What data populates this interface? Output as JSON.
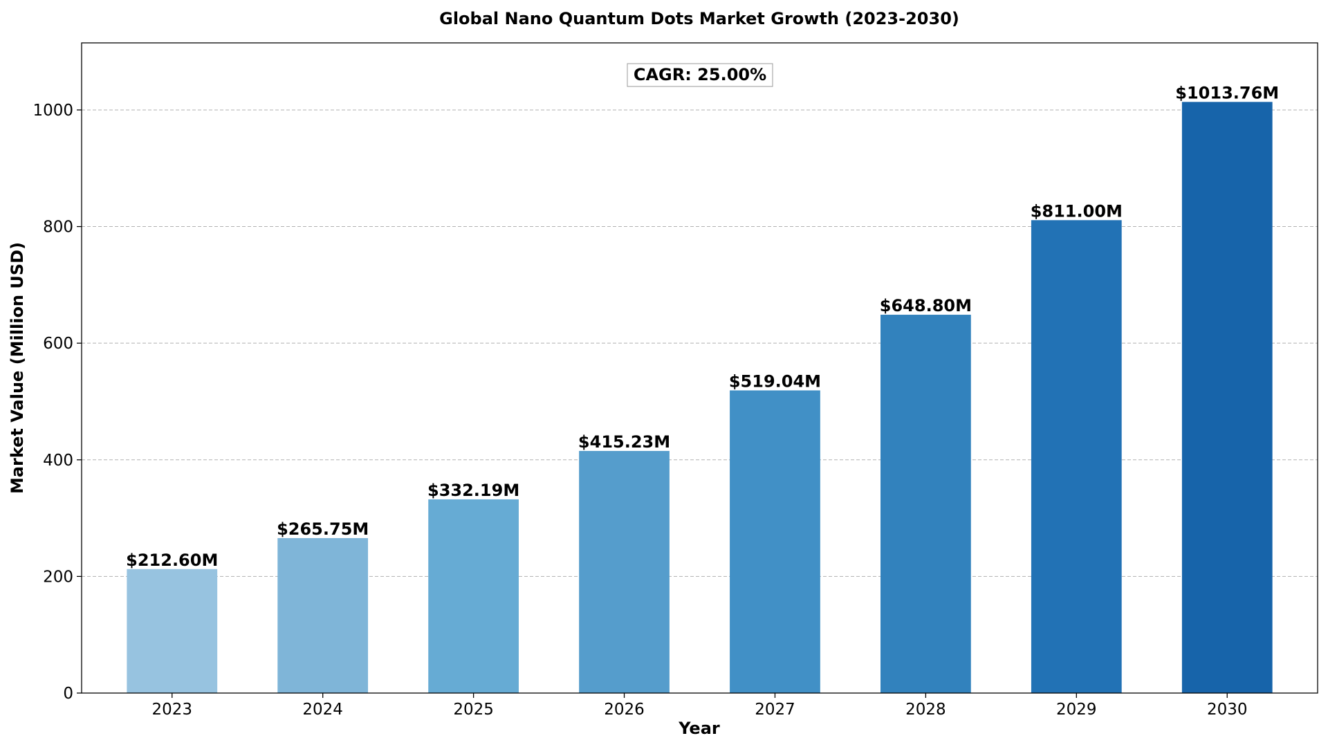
{
  "chart_data": {
    "type": "bar",
    "title": "Global Nano Quantum Dots Market Growth (2023-2030)",
    "xlabel": "Year",
    "ylabel": "Market Value (Million USD)",
    "categories": [
      "2023",
      "2024",
      "2025",
      "2026",
      "2027",
      "2028",
      "2029",
      "2030"
    ],
    "values": [
      212.6,
      265.75,
      332.19,
      415.23,
      519.04,
      648.8,
      811.0,
      1013.76
    ],
    "data_labels": [
      "$212.60M",
      "$265.75M",
      "$332.19M",
      "$415.23M",
      "$519.04M",
      "$648.80M",
      "$811.00M",
      "$1013.76M"
    ],
    "ylim": [
      0,
      1115
    ],
    "yticks": [
      0,
      200,
      400,
      600,
      800,
      1000
    ],
    "ytick_labels": [
      "0",
      "200",
      "400",
      "600",
      "800",
      "1000"
    ],
    "grid": true,
    "annotation": "CAGR: 25.00%",
    "colors": [
      "#97c3e0",
      "#7fb5d8",
      "#66abd4",
      "#559dcc",
      "#4190c6",
      "#3282bd",
      "#2272b5",
      "#1764aa"
    ]
  }
}
